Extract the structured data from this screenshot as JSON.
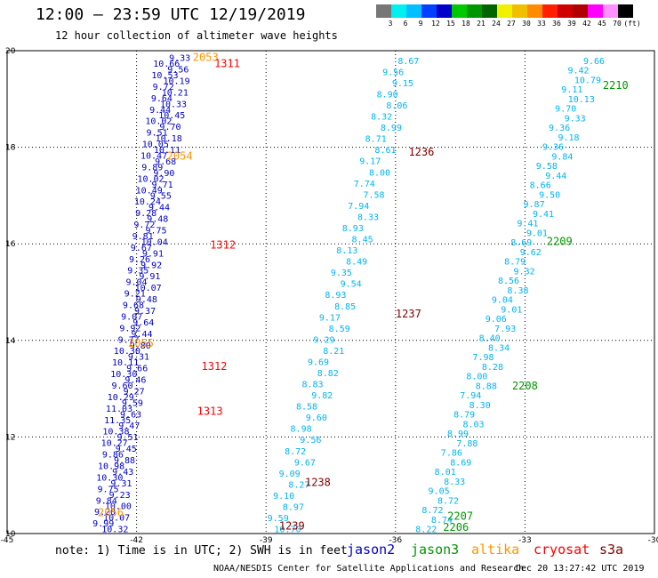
{
  "title": "12:00 — 23:59 UTC 12/19/2019",
  "subtitle": "12 hour collection of altimeter wave heights",
  "colorbar": {
    "colors": [
      "#777777",
      "#00f0f0",
      "#00bfff",
      "#0040ff",
      "#0000c8",
      "#00c800",
      "#009600",
      "#006400",
      "#f0f000",
      "#f0c000",
      "#ff8c00",
      "#ff2000",
      "#d00000",
      "#b00000",
      "#ff00ff",
      "#ff90ff",
      "#000000"
    ],
    "labels": [
      "3",
      "6",
      "9",
      "12",
      "15",
      "18",
      "21",
      "24",
      "27",
      "30",
      "33",
      "36",
      "39",
      "42",
      "45",
      "70",
      "(ft)"
    ]
  },
  "map": {
    "lon_range": [
      -45,
      -30
    ],
    "lat_range": [
      10,
      20
    ],
    "x_ticks": [
      "-45",
      "-42",
      "-39",
      "-36",
      "-33",
      "-30"
    ],
    "y_ticks": [
      "10",
      "12",
      "14",
      "16",
      "18",
      "20"
    ]
  },
  "satellite_colors": {
    "jason2": "#0000c8",
    "jason3": "#009600",
    "altika": "#ff9600",
    "cryosat": "#ff0000",
    "s3a": "#800000"
  },
  "tracks": [
    {
      "name": "jason2-track-a",
      "color": "#0000c8",
      "start": [
        -41.0,
        19.86
      ],
      "end": [
        -42.5,
        10.1
      ],
      "values": [
        "9.33",
        "10.66",
        "9.56",
        "10.53",
        "10.19",
        "9.72",
        "10.21",
        "9.64",
        "10.33",
        "9.44",
        "10.45",
        "10.02",
        "9.70",
        "9.51",
        "10.18",
        "10.05",
        "10.11",
        "10.47",
        "9.68",
        "9.89",
        "9.90",
        "10.02",
        "9.71",
        "10.49",
        "9.55",
        "10.24",
        "9.44",
        "9.28",
        "9.48",
        "9.72",
        "9.75",
        "9.81",
        "10.04",
        "9.67",
        "9.91",
        "9.26",
        "9.92",
        "9.35",
        "9.91",
        "9.04",
        "10.07",
        "9.21",
        "9.48",
        "9.68",
        "9.37",
        "9.07",
        "9.64",
        "9.92",
        "9.44",
        "9.77",
        "9.80",
        "10.30",
        "9.31",
        "10.11",
        "9.66",
        "10.30",
        "9.46",
        "9.60",
        "9.27",
        "10.29",
        "9.59",
        "11.03",
        "9.63",
        "11.35",
        "9.47",
        "10.38",
        "9.51",
        "10.27",
        "9.45",
        "9.86",
        "9.88",
        "10.98",
        "9.43",
        "10.30",
        "9.31",
        "9.75",
        "9.23",
        "9.84",
        "10.00",
        "9.20",
        "10.07",
        "9.99",
        "10.32"
      ]
    },
    {
      "name": "s3a-track-b",
      "color": "#00b4f0",
      "start": [
        -35.7,
        19.8
      ],
      "end": [
        -38.5,
        10.1
      ],
      "values": [
        "8.67",
        "9.56",
        "9.15",
        "8.90",
        "8.06",
        "8.32",
        "8.99",
        "8.71",
        "8.61",
        "9.17",
        "8.00",
        "7.74",
        "7.58",
        "7.94",
        "8.33",
        "8.93",
        "8.45",
        "8.13",
        "8.49",
        "9.35",
        "9.54",
        "8.93",
        "8.85",
        "9.17",
        "8.59",
        "9.29",
        "8.21",
        "9.69",
        "8.82",
        "8.83",
        "9.82",
        "8.58",
        "9.60",
        "8.98",
        "9.56",
        "8.72",
        "9.67",
        "9.09",
        "8.27",
        "9.10",
        "8.97",
        "9.59",
        "10.70"
      ]
    },
    {
      "name": "jason3-track-c",
      "color": "#00b4f0",
      "start": [
        -31.4,
        19.8
      ],
      "end": [
        -35.0,
        10.1
      ],
      "values": [
        "9.66",
        "9.42",
        "10.79",
        "9.11",
        "10.13",
        "9.70",
        "9.33",
        "9.36",
        "9.18",
        "9.36",
        "9.84",
        "9.58",
        "9.44",
        "8.66",
        "9.50",
        "9.87",
        "9.41",
        "9.41",
        "9.01",
        "8.69",
        "9.62",
        "8.79",
        "9.32",
        "8.56",
        "8.38",
        "9.04",
        "9.01",
        "9.06",
        "7.93",
        "8.40",
        "8.34",
        "7.98",
        "8.28",
        "8.00",
        "8.88",
        "7.94",
        "8.30",
        "8.79",
        "8.03",
        "8.99",
        "7.88",
        "7.86",
        "8.69",
        "8.01",
        "8.33",
        "9.05",
        "8.72",
        "8.72",
        "8.74",
        "8.22"
      ]
    }
  ],
  "time_labels": [
    {
      "text": "2053",
      "color": "#ff9600",
      "lon": -40.4,
      "lat": 19.86
    },
    {
      "text": "1311",
      "color": "#ff0000",
      "lon": -39.9,
      "lat": 19.73
    },
    {
      "text": "2054",
      "color": "#ff9600",
      "lon": -41.0,
      "lat": 17.82
    },
    {
      "text": "1312",
      "color": "#ff0000",
      "lon": -40.0,
      "lat": 15.98
    },
    {
      "text": "2055",
      "color": "#ff9600",
      "lon": -41.9,
      "lat": 13.94
    },
    {
      "text": "1312",
      "color": "#ff0000",
      "lon": -40.2,
      "lat": 13.46
    },
    {
      "text": "1313",
      "color": "#ff0000",
      "lon": -40.3,
      "lat": 12.53
    },
    {
      "text": "2056",
      "color": "#ff9600",
      "lon": -42.6,
      "lat": 10.43
    },
    {
      "text": "1236",
      "color": "#800000",
      "lon": -35.4,
      "lat": 17.9
    },
    {
      "text": "1237",
      "color": "#800000",
      "lon": -35.7,
      "lat": 14.55
    },
    {
      "text": "1238",
      "color": "#800000",
      "lon": -37.8,
      "lat": 11.06
    },
    {
      "text": "1239",
      "color": "#800000",
      "lon": -38.4,
      "lat": 10.16
    },
    {
      "text": "2210",
      "color": "#009600",
      "lon": -30.9,
      "lat": 19.28
    },
    {
      "text": "2209",
      "color": "#009600",
      "lon": -32.2,
      "lat": 16.05
    },
    {
      "text": "2208",
      "color": "#009600",
      "lon": -33.0,
      "lat": 13.06
    },
    {
      "text": "2207",
      "color": "#009600",
      "lon": -34.5,
      "lat": 10.36
    },
    {
      "text": "2206",
      "color": "#009600",
      "lon": -34.6,
      "lat": 10.13
    }
  ],
  "note": "note: 1) Time is in UTC; 2) SWH is in feet",
  "legend": {
    "jason2": "jason2",
    "jason3": "jason3",
    "altika": "altika",
    "cryosat": "cryosat",
    "s3a": "s3a"
  },
  "footer": {
    "org": "NOAA/NESDIS Center for Satellite Applications and Research",
    "stamp": "Dec 20 13:27:42 UTC 2019"
  }
}
